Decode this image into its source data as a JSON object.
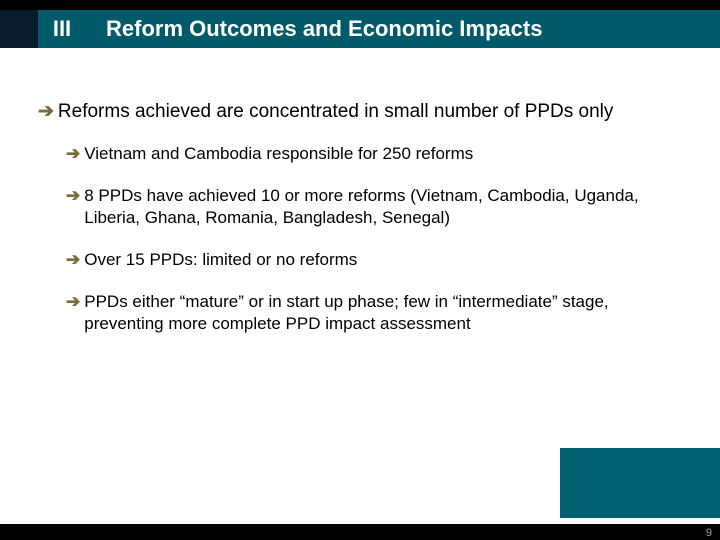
{
  "header": {
    "roman": "III",
    "title": "Reform Outcomes and Economic Impacts"
  },
  "bullets": {
    "main": "Reforms achieved are concentrated in small number of PPDs only",
    "subs": [
      "Vietnam and Cambodia responsible for 250 reforms",
      "8 PPDs have achieved 10 or more reforms (Vietnam, Cambodia, Uganda, Liberia, Ghana, Romania, Bangladesh, Senegal)",
      "Over 15 PPDs: limited or no reforms",
      "PPDs either “mature” or in start up phase; few in “intermediate” stage, preventing more complete PPD impact assessment"
    ]
  },
  "page_number": "9",
  "arrow_glyph": "➔",
  "colors": {
    "header_bg": "#005a6a",
    "dark_strip": "#0a1a2a",
    "arrow": "#7a6a3a",
    "teal_box": "#006070"
  }
}
